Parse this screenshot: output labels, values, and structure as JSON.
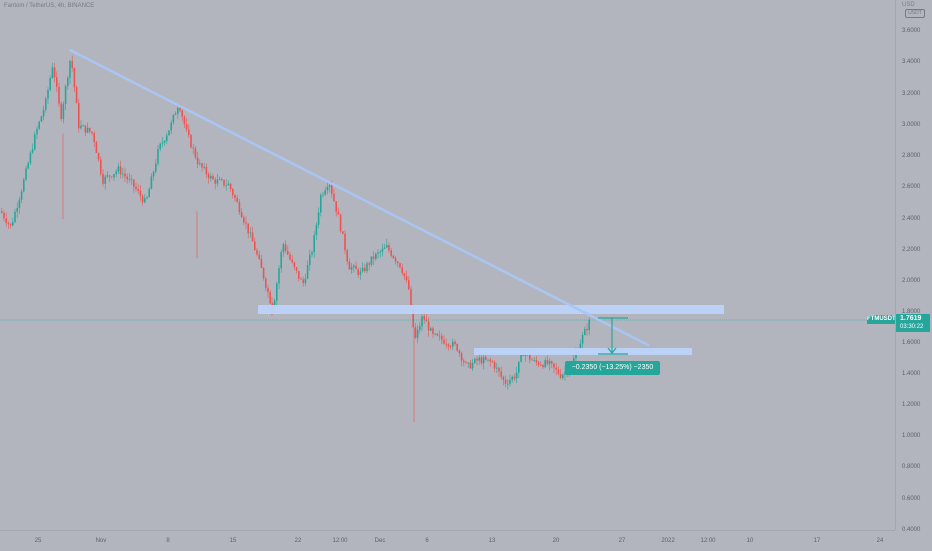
{
  "chart": {
    "symbol_title": "Fantom / TetherUS, 4h, BINANCE",
    "symbol_tag": "FTMUSDT",
    "current_price": "1.7619",
    "countdown": "03:30:22",
    "top_badge": "USD",
    "top_badge_box": "USDT",
    "measure_label": "−0.2350 (−13.25%) −2350",
    "colors": {
      "background": "#b2b5be",
      "up": "#26a69a",
      "down": "#ef5350",
      "trendline": "#a9c5f3",
      "zone": "#bcd3f9",
      "price_line": "#26a69a"
    }
  },
  "price_axis": {
    "ticks": [
      "3.6000",
      "3.4000",
      "3.2000",
      "3.0000",
      "2.8000",
      "2.6000",
      "2.4000",
      "2.2000",
      "2.0000",
      "1.8000",
      "1.6000",
      "1.4000",
      "1.2000",
      "1.0000",
      "0.8000",
      "0.6000",
      "0.4000"
    ]
  },
  "time_axis": {
    "ticks": [
      "25",
      "Nov",
      "8",
      "15",
      "22",
      "12:00",
      "Dec",
      "6",
      "13",
      "20",
      "27",
      "2022",
      "12:00",
      "10",
      "17",
      "24"
    ]
  },
  "drawings": {
    "trendline": {
      "from": {
        "date": "Oct 28",
        "price": 3.49
      },
      "to": {
        "date": "Dec 29",
        "price": 1.75
      }
    },
    "resistance_zone": {
      "price": 1.78
    },
    "support_zone": {
      "price": 1.57
    }
  }
}
